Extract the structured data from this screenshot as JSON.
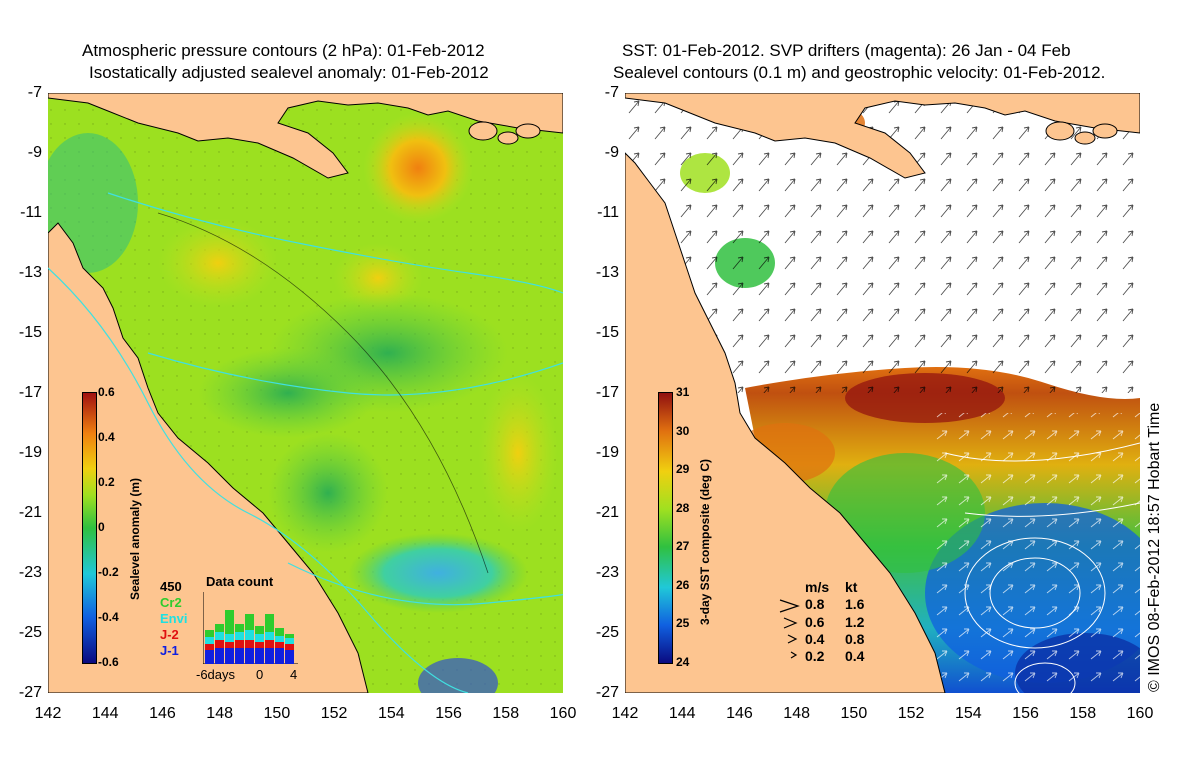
{
  "left": {
    "title1": "Atmospheric pressure contours (2 hPa): 01-Feb-2012",
    "title2": "Isostatically adjusted sealevel anomaly: 01-Feb-2012",
    "colorbar_label": "Sealevel anomaly (m)",
    "colorbar_ticks": [
      "0.6",
      "0.4",
      "0.2",
      "0",
      "-0.2",
      "-0.4",
      "-0.6"
    ],
    "data_count": {
      "title": "Data count",
      "max_label": "450",
      "missions": [
        {
          "label": "Cr2",
          "color": "#2ecc2e"
        },
        {
          "label": "Envi",
          "color": "#1fe0e0"
        },
        {
          "label": "J-2",
          "color": "#e01010"
        },
        {
          "label": "J-1",
          "color": "#1020e0"
        }
      ],
      "x_labels": [
        "-6days",
        "0",
        "4"
      ]
    }
  },
  "right": {
    "title1": "SST: 01-Feb-2012. SVP drifters (magenta): 26 Jan - 04 Feb",
    "title2": "Sealevel contours (0.1 m) and geostrophic velocity: 01-Feb-2012.",
    "colorbar_label": "3-day SST composite (deg C)",
    "colorbar_ticks": [
      "31",
      "30",
      "29",
      "28",
      "27",
      "26",
      "25",
      "24"
    ],
    "speed_legend": {
      "header_ms": "m/s",
      "header_kt": "kt",
      "rows": [
        {
          "ms": "0.8",
          "kt": "1.6"
        },
        {
          "ms": "0.6",
          "kt": "1.2"
        },
        {
          "ms": "0.4",
          "kt": "0.8"
        },
        {
          "ms": "0.2",
          "kt": "0.4"
        }
      ]
    }
  },
  "axes": {
    "lat_labels": [
      "-7",
      "-9",
      "-11",
      "-13",
      "-15",
      "-17",
      "-19",
      "-21",
      "-23",
      "-25",
      "-27"
    ],
    "lon_labels": [
      "142",
      "144",
      "146",
      "148",
      "150",
      "152",
      "154",
      "156",
      "158",
      "160"
    ]
  },
  "copyright": "© IMOS 08-Feb-2012 18:57 Hobart Time",
  "colors": {
    "land": "#fdc590",
    "sla_colormap": [
      "#0a0a80",
      "#1060e0",
      "#20c8d8",
      "#30c040",
      "#9ee020",
      "#f0d010",
      "#f08010",
      "#a01010"
    ],
    "sst_colormap": [
      "#0a0a80",
      "#1060e0",
      "#20c8d8",
      "#30c040",
      "#a0e020",
      "#f0d010",
      "#e07010",
      "#901010"
    ]
  }
}
